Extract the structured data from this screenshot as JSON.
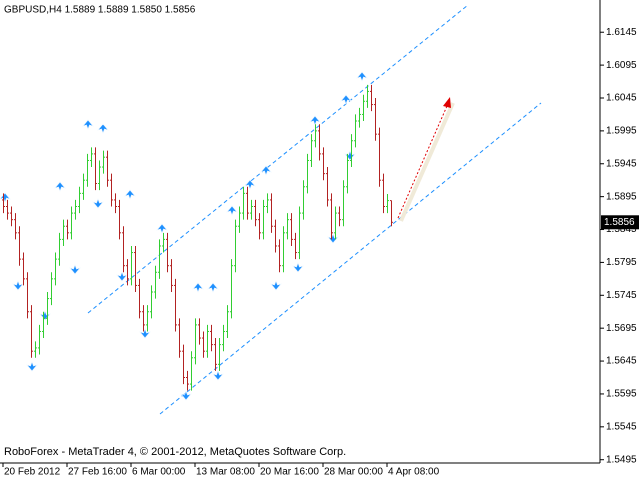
{
  "chart_data": {
    "type": "ohlc",
    "title": "GBPUSD,H4  1.5889 1.5889 1.5850 1.5856",
    "footer": "RoboForex - MetaTrader 4, © 2001-2012, MetaQuotes Software Corp.",
    "categories": [
      "20 Feb 2012",
      null,
      null,
      null,
      null,
      null,
      null,
      null,
      null,
      null,
      null,
      null,
      null,
      null,
      null,
      null,
      "27 Feb 16:00",
      null,
      null,
      null,
      null,
      null,
      null,
      null,
      null,
      null,
      null,
      null,
      null,
      null,
      null,
      null,
      "6 Mar 00:00",
      null,
      null,
      null,
      null,
      null,
      null,
      null,
      null,
      null,
      null,
      null,
      null,
      null,
      null,
      null,
      "13 Mar 08:00",
      null,
      null,
      null,
      null,
      null,
      null,
      null,
      null,
      null,
      null,
      null,
      null,
      null,
      null,
      null,
      "20 Mar 16:00",
      null,
      null,
      null,
      null,
      null,
      null,
      null,
      null,
      null,
      null,
      null,
      null,
      null,
      null,
      null,
      "28 Mar 00:00",
      null,
      null,
      null,
      null,
      null,
      null,
      null,
      null,
      null,
      null,
      null,
      null,
      null,
      null,
      null,
      "4 Apr 08:00",
      null
    ],
    "open": [
      1.589,
      1.588,
      1.587,
      1.586,
      1.584,
      1.58,
      1.577,
      1.572,
      1.566,
      1.5665,
      1.569,
      1.571,
      1.574,
      1.577,
      1.58,
      1.583,
      1.585,
      1.584,
      1.587,
      1.588,
      1.59,
      1.592,
      1.595,
      1.596,
      1.5915,
      1.594,
      1.5955,
      1.592,
      1.589,
      1.588,
      1.584,
      1.579,
      1.577,
      1.581,
      1.576,
      1.572,
      1.57,
      1.572,
      1.575,
      1.578,
      1.582,
      1.583,
      1.579,
      1.576,
      1.57,
      1.566,
      1.562,
      1.561,
      1.565,
      1.57,
      1.568,
      1.566,
      1.569,
      1.567,
      1.564,
      1.567,
      1.569,
      1.572,
      1.579,
      1.585,
      1.587,
      1.59,
      1.587,
      1.588,
      1.586,
      1.584,
      1.588,
      1.589,
      1.585,
      1.582,
      1.579,
      1.584,
      1.586,
      1.583,
      1.581,
      1.587,
      1.591,
      1.595,
      1.598,
      1.5995,
      1.596,
      1.593,
      1.589,
      1.584,
      1.587,
      1.586,
      1.591,
      1.595,
      1.598,
      1.601,
      1.602,
      1.604,
      1.6055,
      1.6035,
      1.599,
      1.592,
      1.588,
      1.5889
    ],
    "high": [
      1.59,
      1.589,
      1.588,
      1.587,
      1.585,
      1.581,
      1.578,
      1.573,
      1.5675,
      1.57,
      1.572,
      1.575,
      1.578,
      1.581,
      1.584,
      1.586,
      1.586,
      1.588,
      1.589,
      1.591,
      1.593,
      1.596,
      1.597,
      1.597,
      1.595,
      1.5965,
      1.5965,
      1.593,
      1.59,
      1.589,
      1.585,
      1.58,
      1.582,
      1.582,
      1.577,
      1.573,
      1.573,
      1.576,
      1.579,
      1.583,
      1.584,
      1.584,
      1.58,
      1.577,
      1.571,
      1.567,
      1.563,
      1.566,
      1.571,
      1.571,
      1.569,
      1.57,
      1.57,
      1.568,
      1.568,
      1.57,
      1.573,
      1.58,
      1.586,
      1.588,
      1.591,
      1.591,
      1.589,
      1.589,
      1.587,
      1.589,
      1.59,
      1.59,
      1.586,
      1.583,
      1.585,
      1.587,
      1.587,
      1.584,
      1.588,
      1.592,
      1.596,
      1.599,
      1.6005,
      1.6005,
      1.597,
      1.594,
      1.59,
      1.588,
      1.588,
      1.592,
      1.596,
      1.599,
      1.602,
      1.603,
      1.605,
      1.6065,
      1.6065,
      1.6045,
      1.6,
      1.593,
      1.5899,
      1.5889
    ],
    "low": [
      1.587,
      1.586,
      1.585,
      1.583,
      1.579,
      1.576,
      1.571,
      1.565,
      1.565,
      1.5655,
      1.568,
      1.57,
      1.573,
      1.576,
      1.579,
      1.582,
      1.583,
      1.583,
      1.586,
      1.587,
      1.589,
      1.591,
      1.594,
      1.5905,
      1.5905,
      1.593,
      1.591,
      1.588,
      1.587,
      1.583,
      1.578,
      1.576,
      1.576,
      1.575,
      1.571,
      1.569,
      1.569,
      1.571,
      1.574,
      1.577,
      1.581,
      1.578,
      1.575,
      1.569,
      1.565,
      1.561,
      1.56,
      1.56,
      1.564,
      1.567,
      1.565,
      1.565,
      1.566,
      1.563,
      1.563,
      1.566,
      1.568,
      1.571,
      1.578,
      1.584,
      1.586,
      1.586,
      1.586,
      1.585,
      1.583,
      1.583,
      1.587,
      1.584,
      1.581,
      1.578,
      1.578,
      1.583,
      1.582,
      1.58,
      1.58,
      1.586,
      1.59,
      1.594,
      1.597,
      1.595,
      1.592,
      1.588,
      1.583,
      1.583,
      1.585,
      1.585,
      1.59,
      1.594,
      1.597,
      1.6,
      1.601,
      1.603,
      1.6025,
      1.598,
      1.591,
      1.587,
      1.587,
      1.585
    ],
    "close": [
      1.588,
      1.587,
      1.586,
      1.584,
      1.58,
      1.577,
      1.572,
      1.566,
      1.5665,
      1.569,
      1.571,
      1.574,
      1.577,
      1.58,
      1.583,
      1.585,
      1.584,
      1.587,
      1.588,
      1.59,
      1.592,
      1.595,
      1.596,
      1.5915,
      1.594,
      1.5955,
      1.592,
      1.589,
      1.588,
      1.584,
      1.579,
      1.577,
      1.581,
      1.576,
      1.572,
      1.57,
      1.572,
      1.575,
      1.578,
      1.582,
      1.583,
      1.579,
      1.576,
      1.57,
      1.566,
      1.562,
      1.561,
      1.565,
      1.57,
      1.568,
      1.566,
      1.569,
      1.567,
      1.564,
      1.567,
      1.569,
      1.572,
      1.579,
      1.585,
      1.587,
      1.59,
      1.587,
      1.588,
      1.586,
      1.584,
      1.588,
      1.589,
      1.585,
      1.582,
      1.579,
      1.584,
      1.586,
      1.583,
      1.581,
      1.587,
      1.591,
      1.595,
      1.598,
      1.5995,
      1.596,
      1.593,
      1.589,
      1.584,
      1.587,
      1.586,
      1.591,
      1.595,
      1.598,
      1.601,
      1.602,
      1.604,
      1.6055,
      1.6035,
      1.599,
      1.592,
      1.588,
      1.5889,
      1.5856
    ],
    "up_color": "#32cd32",
    "down_color": "#b22222",
    "ylim": [
      1.549,
      1.6194
    ],
    "yticks": [
      1.6145,
      1.6095,
      1.6045,
      1.5995,
      1.5945,
      1.5895,
      1.5845,
      1.5795,
      1.5745,
      1.5695,
      1.5645,
      1.5595,
      1.5545,
      1.5495
    ],
    "last_price": {
      "value": 1.5856,
      "label": "1.5856"
    }
  }
}
